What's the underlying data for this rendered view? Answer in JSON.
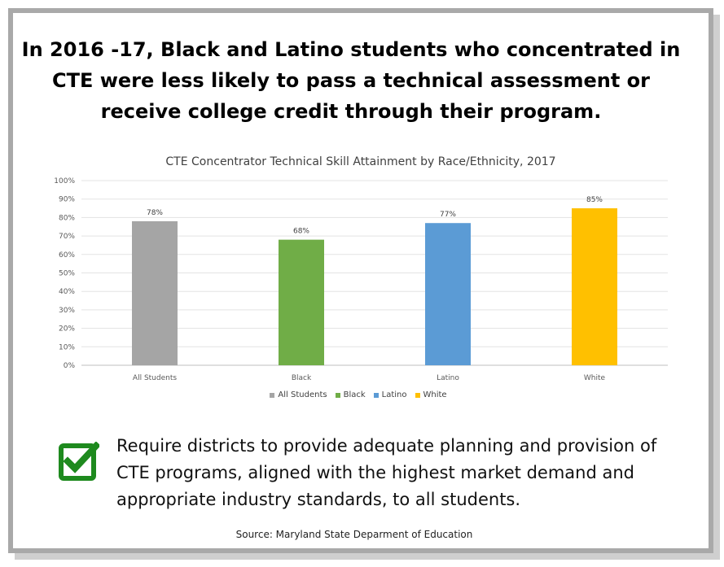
{
  "headline": "In 2016 -17, Black and Latino students who concentrated in CTE were less likely to pass a technical assessment or receive college credit through their program.",
  "chart_data": {
    "type": "bar",
    "title": "CTE Concentrator Technical Skill Attainment by Race/Ethnicity, 2017",
    "categories": [
      "All Students",
      "Black",
      "Latino",
      "White"
    ],
    "values": [
      78,
      68,
      77,
      85
    ],
    "data_labels": [
      "78%",
      "68%",
      "77%",
      "85%"
    ],
    "colors": [
      "#a5a5a5",
      "#70ad47",
      "#5b9bd5",
      "#ffc000"
    ],
    "ylim": [
      0,
      100
    ],
    "y_ticks": [
      0,
      10,
      20,
      30,
      40,
      50,
      60,
      70,
      80,
      90,
      100
    ],
    "y_tick_labels": [
      "0%",
      "10%",
      "20%",
      "30%",
      "40%",
      "50%",
      "60%",
      "70%",
      "80%",
      "90%",
      "100%"
    ],
    "grid": true,
    "legend": {
      "placement": "bottom",
      "entries": [
        "All Students",
        "Black",
        "Latino",
        "White"
      ]
    }
  },
  "recommendation": {
    "icon": "checkbox-check-icon",
    "icon_color": "#1e8a1e",
    "text": "Require districts to provide adequate planning and provision of CTE programs, aligned with the highest market demand and appropriate industry standards, to all students."
  },
  "source": "Source: Maryland State Deparment of Education"
}
